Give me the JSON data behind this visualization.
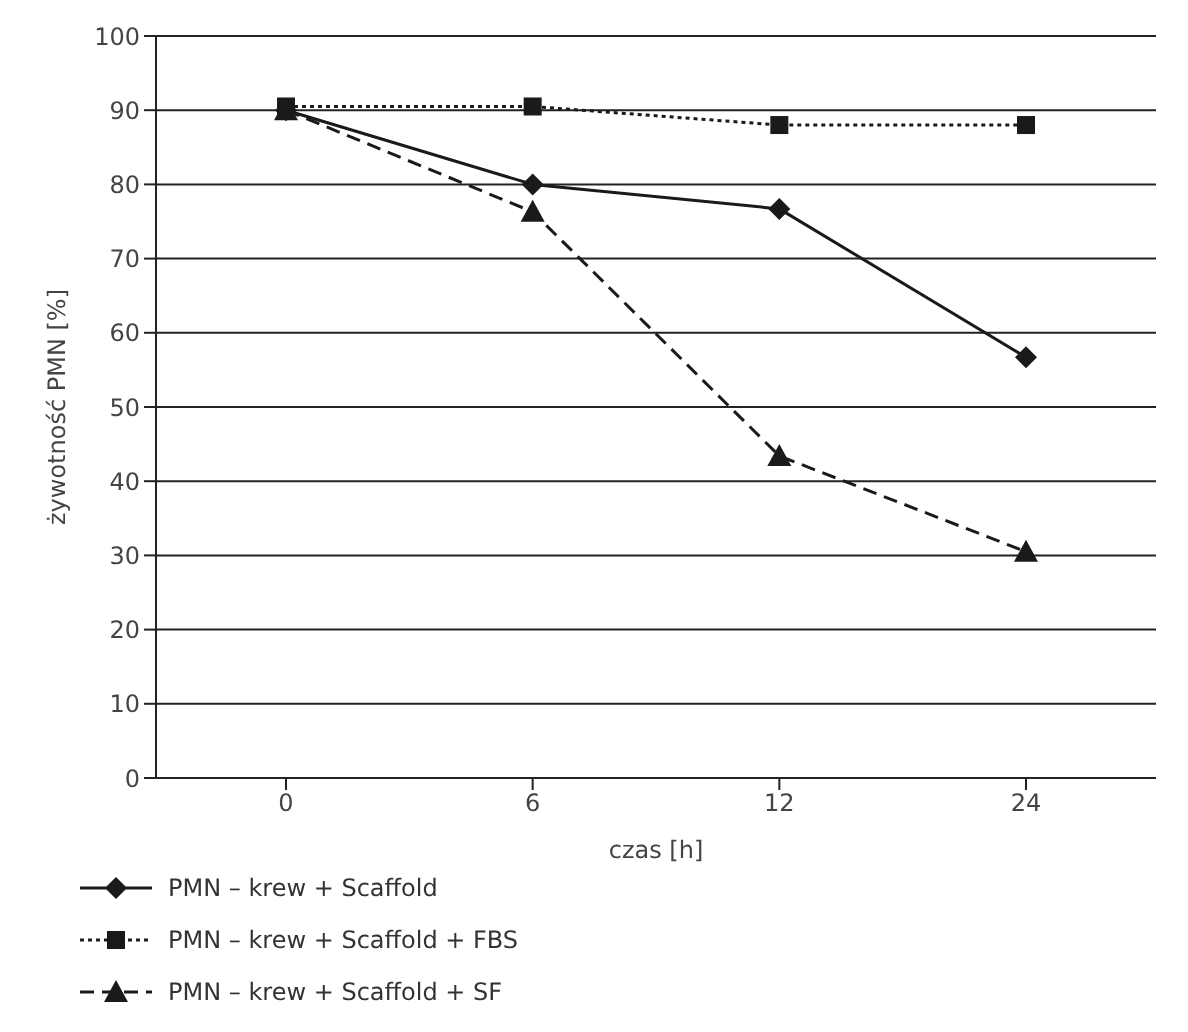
{
  "chart_data": {
    "type": "line",
    "xlabel": "czas [h]",
    "ylabel": "żywotność PMN [%]",
    "categories": [
      "0",
      "6",
      "12",
      "24"
    ],
    "series": [
      {
        "name": "PMN – krew + Scaffold",
        "color": "#1a1a1a",
        "marker": "diamond",
        "line_style": "solid",
        "values": [
          90,
          80,
          76.7,
          56.7
        ]
      },
      {
        "name": "PMN – krew + Scaffold + FBS",
        "color": "#1a1a1a",
        "marker": "square",
        "line_style": "dotted",
        "values": [
          90.5,
          90.5,
          88,
          88
        ]
      },
      {
        "name": "PMN – krew + Scaffold + SF",
        "color": "#1a1a1a",
        "marker": "triangle",
        "line_style": "dashed",
        "values": [
          90,
          76.3,
          43.4,
          30.5
        ]
      }
    ],
    "ylim": [
      0,
      100
    ],
    "yticks": [
      0,
      10,
      20,
      30,
      40,
      50,
      60,
      70,
      80,
      90,
      100
    ],
    "grid": "y",
    "legend": "bottom left"
  }
}
